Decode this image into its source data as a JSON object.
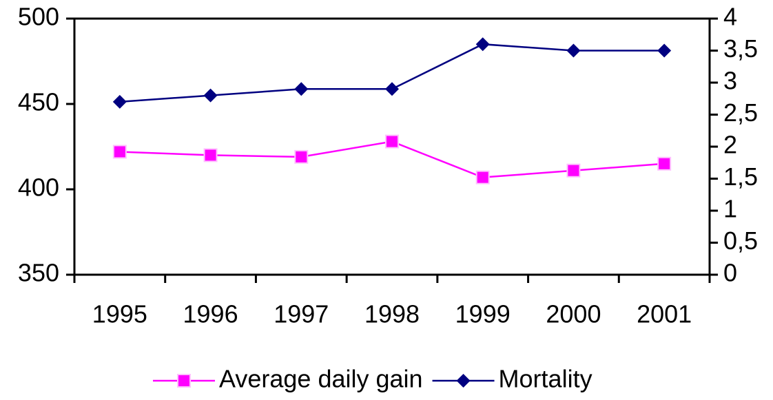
{
  "chart_data": {
    "type": "line",
    "categories": [
      "1995",
      "1996",
      "1997",
      "1998",
      "1999",
      "2000",
      "2001"
    ],
    "series": [
      {
        "name": "Average daily gain",
        "color": "#ff00ff",
        "marker": "square",
        "axis": "y",
        "values": [
          422,
          420,
          419,
          428,
          407,
          411,
          415
        ]
      },
      {
        "name": "Mortality",
        "color": "#000080",
        "marker": "diamond",
        "axis": "y2",
        "values": [
          2.7,
          2.8,
          2.9,
          2.9,
          3.6,
          3.5,
          3.5
        ]
      }
    ],
    "ylim": [
      350,
      500
    ],
    "yticks": [
      350,
      400,
      450,
      500
    ],
    "y2lim": [
      0,
      4
    ],
    "y2ticks": [
      0,
      {
        "value": 0.5,
        "label": "0,5"
      },
      1,
      {
        "value": 1.5,
        "label": "1,5"
      },
      2,
      {
        "value": 2.5,
        "label": "2,5"
      },
      3,
      {
        "value": 3.5,
        "label": "3,5"
      },
      4
    ],
    "grid": false,
    "legend": "bottom"
  }
}
